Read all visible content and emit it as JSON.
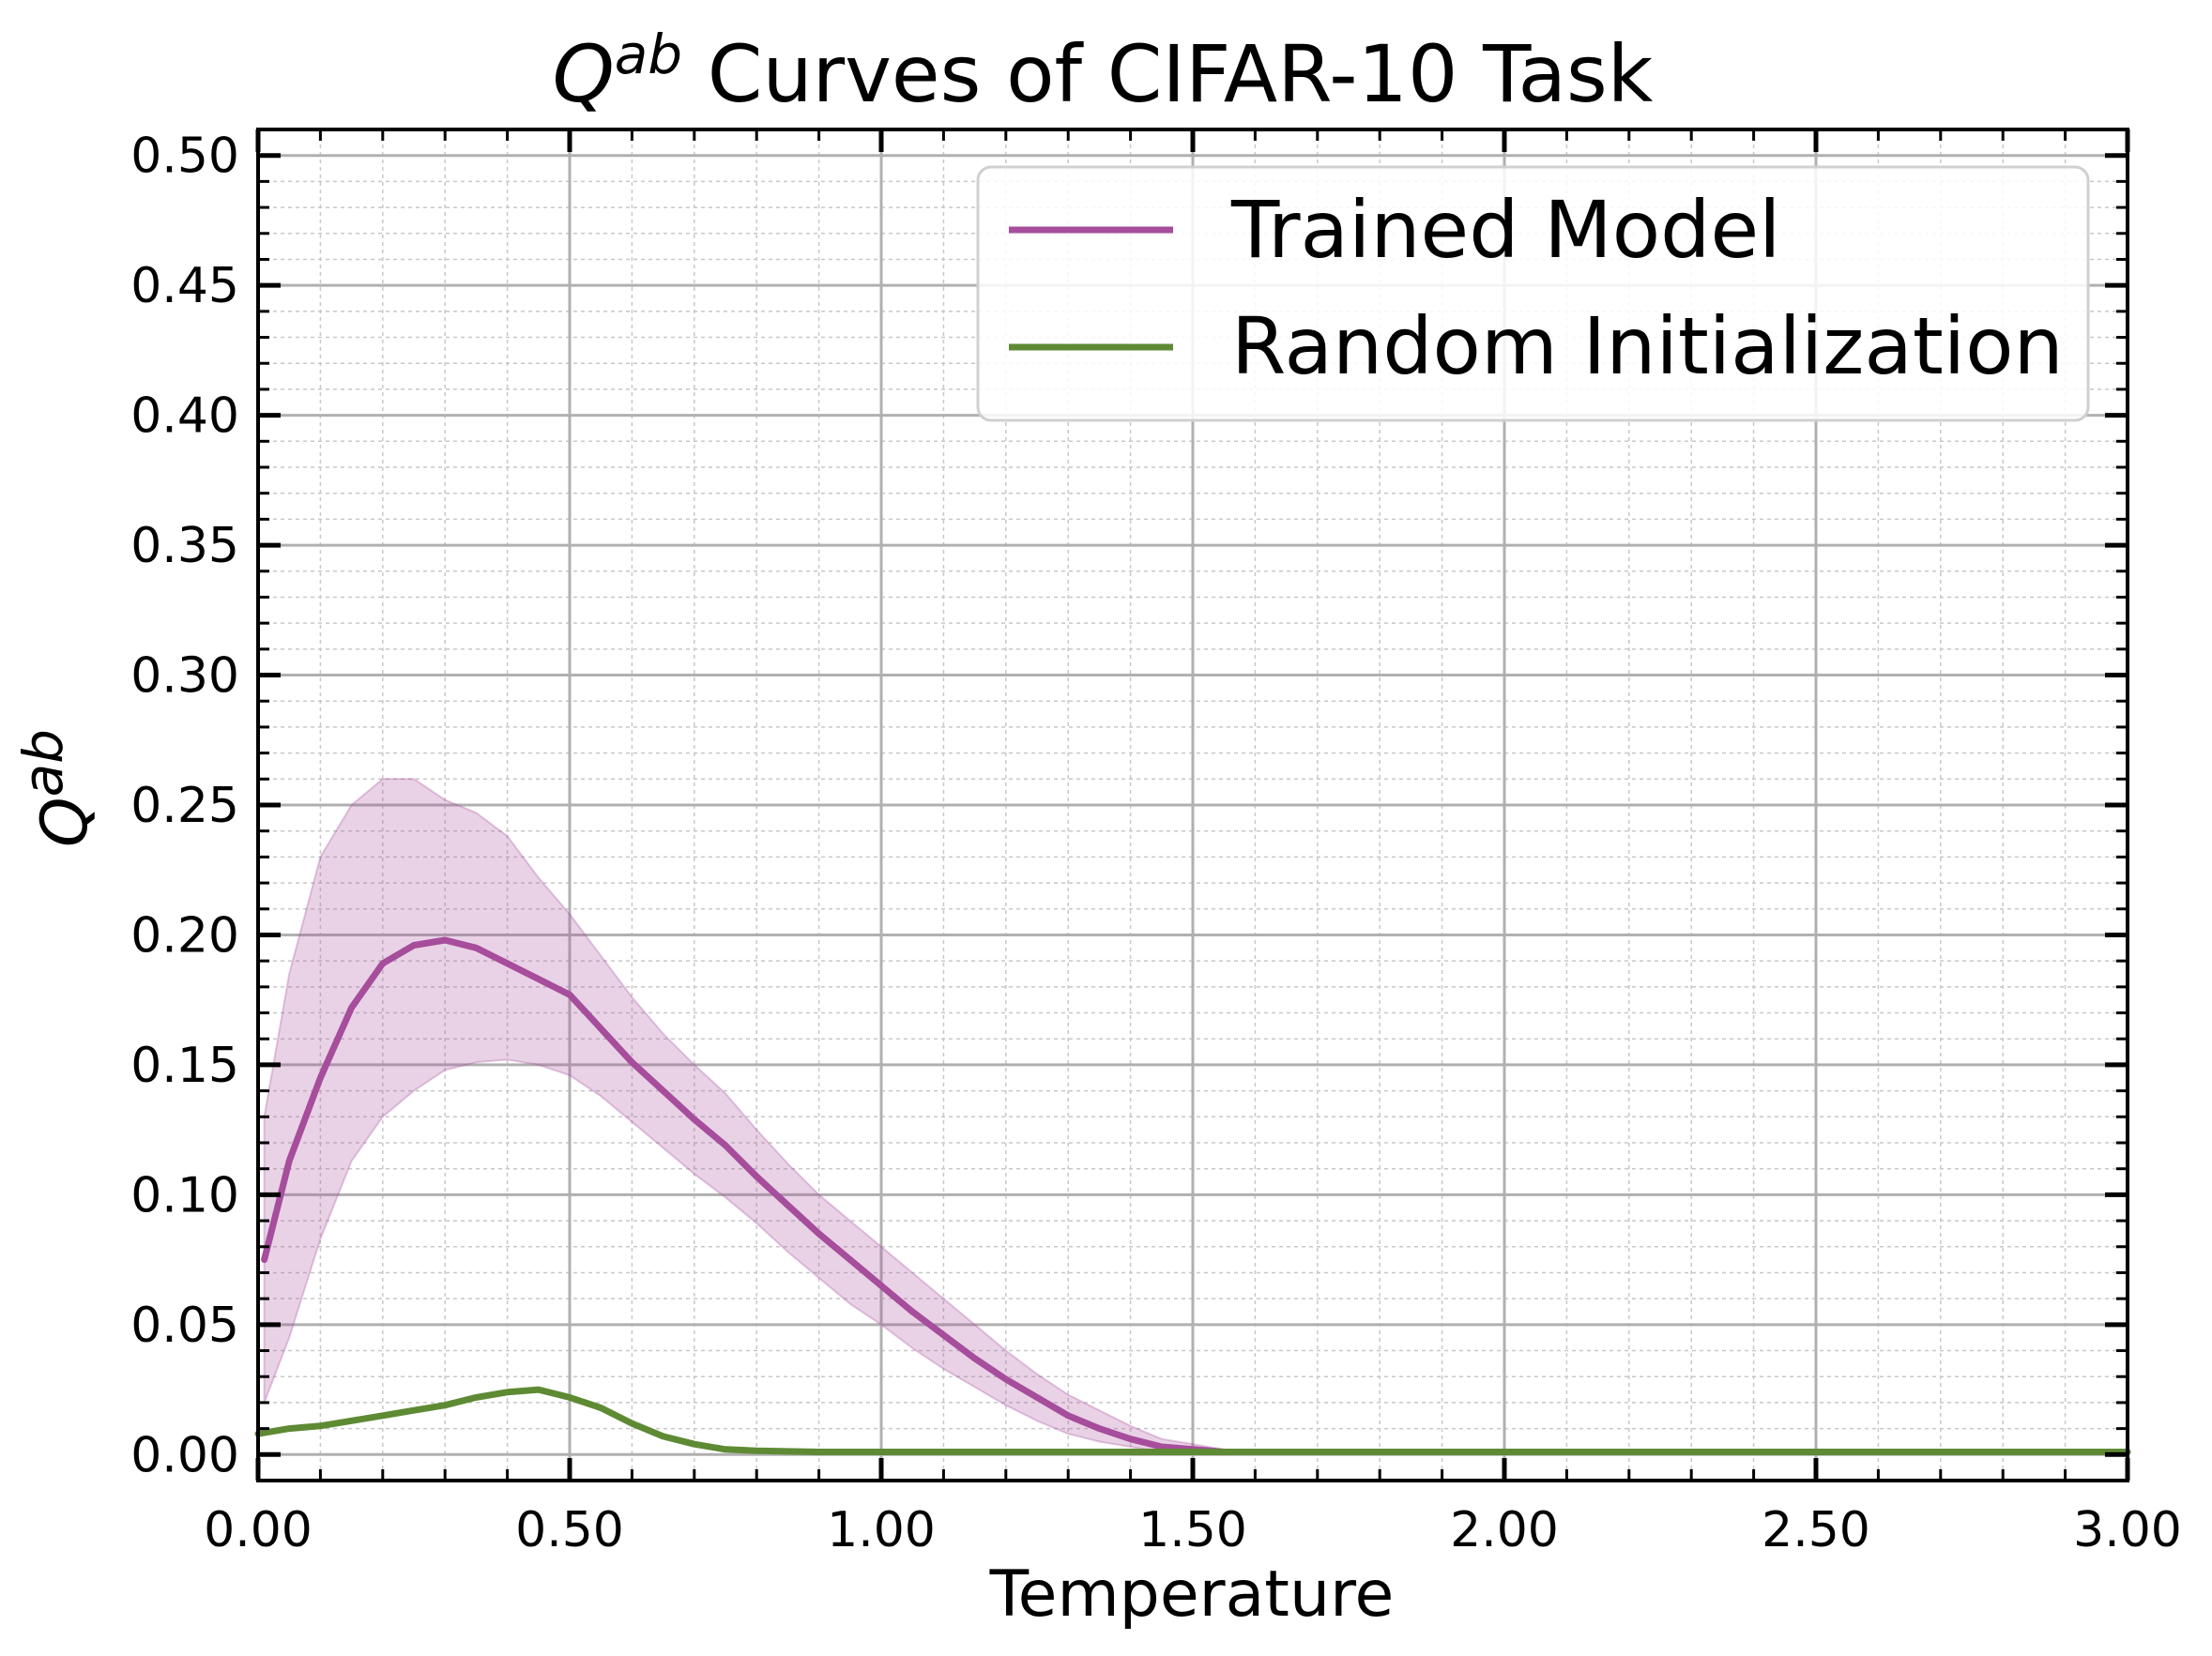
{
  "chart_data": {
    "type": "line",
    "title": {
      "symbol": "Q",
      "superscript": "ab",
      "rest": " Curves of CIFAR-10 Task"
    },
    "xlabel": "Temperature",
    "ylabel": {
      "symbol": "Q",
      "superscript": "ab"
    },
    "xlim": [
      0.0,
      3.0
    ],
    "ylim": [
      -0.01,
      0.51
    ],
    "x_ticks": [
      0.0,
      0.5,
      1.0,
      1.5,
      2.0,
      2.5,
      3.0
    ],
    "x_tick_labels": [
      "0.00",
      "0.50",
      "1.00",
      "1.50",
      "2.00",
      "2.50",
      "3.00"
    ],
    "y_ticks": [
      0.0,
      0.05,
      0.1,
      0.15,
      0.2,
      0.25,
      0.3,
      0.35,
      0.4,
      0.45,
      0.5
    ],
    "y_tick_labels": [
      "0.00",
      "0.05",
      "0.10",
      "0.15",
      "0.20",
      "0.25",
      "0.30",
      "0.35",
      "0.40",
      "0.45",
      "0.50"
    ],
    "grid": true,
    "minor_grid": true,
    "legend_position": "top-right",
    "series": [
      {
        "name": "Trained Model",
        "color": "#a64d9c",
        "band_color": "#a64d9c",
        "x": [
          0.01,
          0.05,
          0.1,
          0.15,
          0.2,
          0.25,
          0.3,
          0.35,
          0.4,
          0.45,
          0.5,
          0.55,
          0.6,
          0.65,
          0.7,
          0.75,
          0.8,
          0.85,
          0.9,
          0.95,
          1.0,
          1.05,
          1.1,
          1.15,
          1.2,
          1.25,
          1.3,
          1.35,
          1.4,
          1.45,
          1.5,
          1.55,
          1.6,
          1.65,
          1.7,
          1.8,
          2.0,
          2.5,
          3.0
        ],
        "y": [
          0.075,
          0.113,
          0.145,
          0.172,
          0.189,
          0.196,
          0.198,
          0.195,
          0.189,
          0.183,
          0.177,
          0.164,
          0.151,
          0.14,
          0.129,
          0.119,
          0.107,
          0.096,
          0.085,
          0.075,
          0.065,
          0.055,
          0.046,
          0.037,
          0.029,
          0.022,
          0.015,
          0.01,
          0.006,
          0.003,
          0.002,
          0.001,
          0.001,
          0.001,
          0.001,
          0.001,
          0.001,
          0.001,
          0.001
        ],
        "lower": [
          0.02,
          0.045,
          0.083,
          0.113,
          0.13,
          0.14,
          0.148,
          0.151,
          0.152,
          0.15,
          0.146,
          0.138,
          0.128,
          0.118,
          0.108,
          0.099,
          0.089,
          0.078,
          0.068,
          0.058,
          0.05,
          0.041,
          0.033,
          0.026,
          0.019,
          0.013,
          0.008,
          0.005,
          0.003,
          0.001,
          0.001,
          0.001,
          0.001,
          0.001,
          0.001,
          0.001,
          0.001,
          0.001,
          0.001
        ],
        "upper": [
          0.13,
          0.185,
          0.23,
          0.25,
          0.26,
          0.26,
          0.252,
          0.247,
          0.238,
          0.222,
          0.208,
          0.192,
          0.176,
          0.162,
          0.15,
          0.139,
          0.125,
          0.112,
          0.1,
          0.09,
          0.08,
          0.07,
          0.06,
          0.05,
          0.04,
          0.031,
          0.023,
          0.017,
          0.011,
          0.006,
          0.004,
          0.002,
          0.001,
          0.001,
          0.001,
          0.001,
          0.001,
          0.001,
          0.001
        ]
      },
      {
        "name": "Random Initialization",
        "color": "#5e8a34",
        "x": [
          0.0,
          0.05,
          0.1,
          0.15,
          0.2,
          0.25,
          0.3,
          0.35,
          0.4,
          0.45,
          0.5,
          0.55,
          0.6,
          0.65,
          0.7,
          0.75,
          0.8,
          0.9,
          1.0,
          1.5,
          2.0,
          2.5,
          3.0
        ],
        "y": [
          0.008,
          0.01,
          0.011,
          0.013,
          0.015,
          0.017,
          0.019,
          0.022,
          0.024,
          0.025,
          0.022,
          0.018,
          0.012,
          0.007,
          0.004,
          0.002,
          0.0015,
          0.001,
          0.001,
          0.001,
          0.001,
          0.001,
          0.001
        ]
      }
    ]
  }
}
